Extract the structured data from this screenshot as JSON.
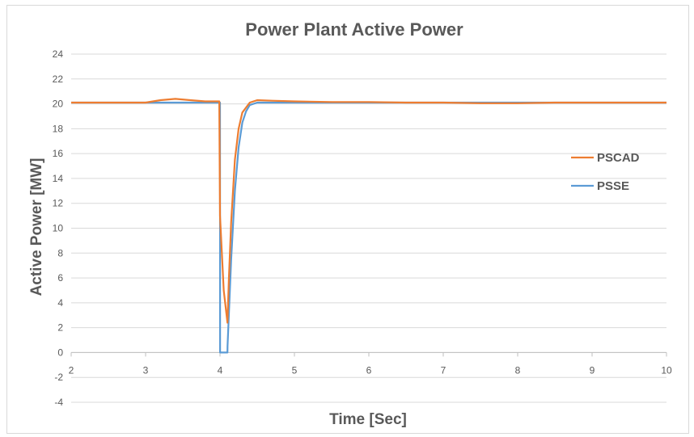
{
  "chart_data": {
    "type": "line",
    "title": "Power Plant Active Power",
    "xlabel": "Time [Sec]",
    "ylabel": "Active Power [MW]",
    "xlim": [
      2,
      10
    ],
    "ylim": [
      -4,
      24
    ],
    "xticks": [
      2,
      3,
      4,
      5,
      6,
      7,
      8,
      9,
      10
    ],
    "yticks": [
      -4,
      -2,
      0,
      2,
      4,
      6,
      8,
      10,
      12,
      14,
      16,
      18,
      20,
      22,
      24
    ],
    "grid": "horizontal",
    "legend_position": "right",
    "series": [
      {
        "name": "PSCAD",
        "color": "#ED7D31",
        "x": [
          2.0,
          2.2,
          2.4,
          2.6,
          2.8,
          3.0,
          3.2,
          3.4,
          3.6,
          3.8,
          3.99,
          4.0,
          4.05,
          4.1,
          4.12,
          4.15,
          4.2,
          4.25,
          4.3,
          4.4,
          4.5,
          4.7,
          5.0,
          5.5,
          6.0,
          6.5,
          7.0,
          7.5,
          8.0,
          8.5,
          9.0,
          9.5,
          10.0
        ],
        "y": [
          20.1,
          20.1,
          20.1,
          20.1,
          20.1,
          20.1,
          20.3,
          20.4,
          20.3,
          20.2,
          20.2,
          11.0,
          5.0,
          2.4,
          6.0,
          10.5,
          15.5,
          18.0,
          19.3,
          20.1,
          20.3,
          20.25,
          20.2,
          20.15,
          20.15,
          20.1,
          20.1,
          20.05,
          20.05,
          20.1,
          20.1,
          20.1,
          20.1
        ]
      },
      {
        "name": "PSSE",
        "color": "#5B9BD5",
        "x": [
          2.0,
          3.0,
          3.99,
          4.0,
          4.001,
          4.1,
          4.101,
          4.15,
          4.2,
          4.25,
          4.3,
          4.35,
          4.4,
          4.5,
          4.7,
          5.0,
          6.0,
          7.0,
          8.0,
          9.0,
          10.0
        ],
        "y": [
          20.1,
          20.1,
          20.1,
          20.1,
          0.0,
          0.0,
          0.5,
          7.5,
          13.0,
          16.5,
          18.5,
          19.4,
          19.9,
          20.1,
          20.1,
          20.1,
          20.1,
          20.1,
          20.1,
          20.1,
          20.1
        ]
      }
    ]
  }
}
